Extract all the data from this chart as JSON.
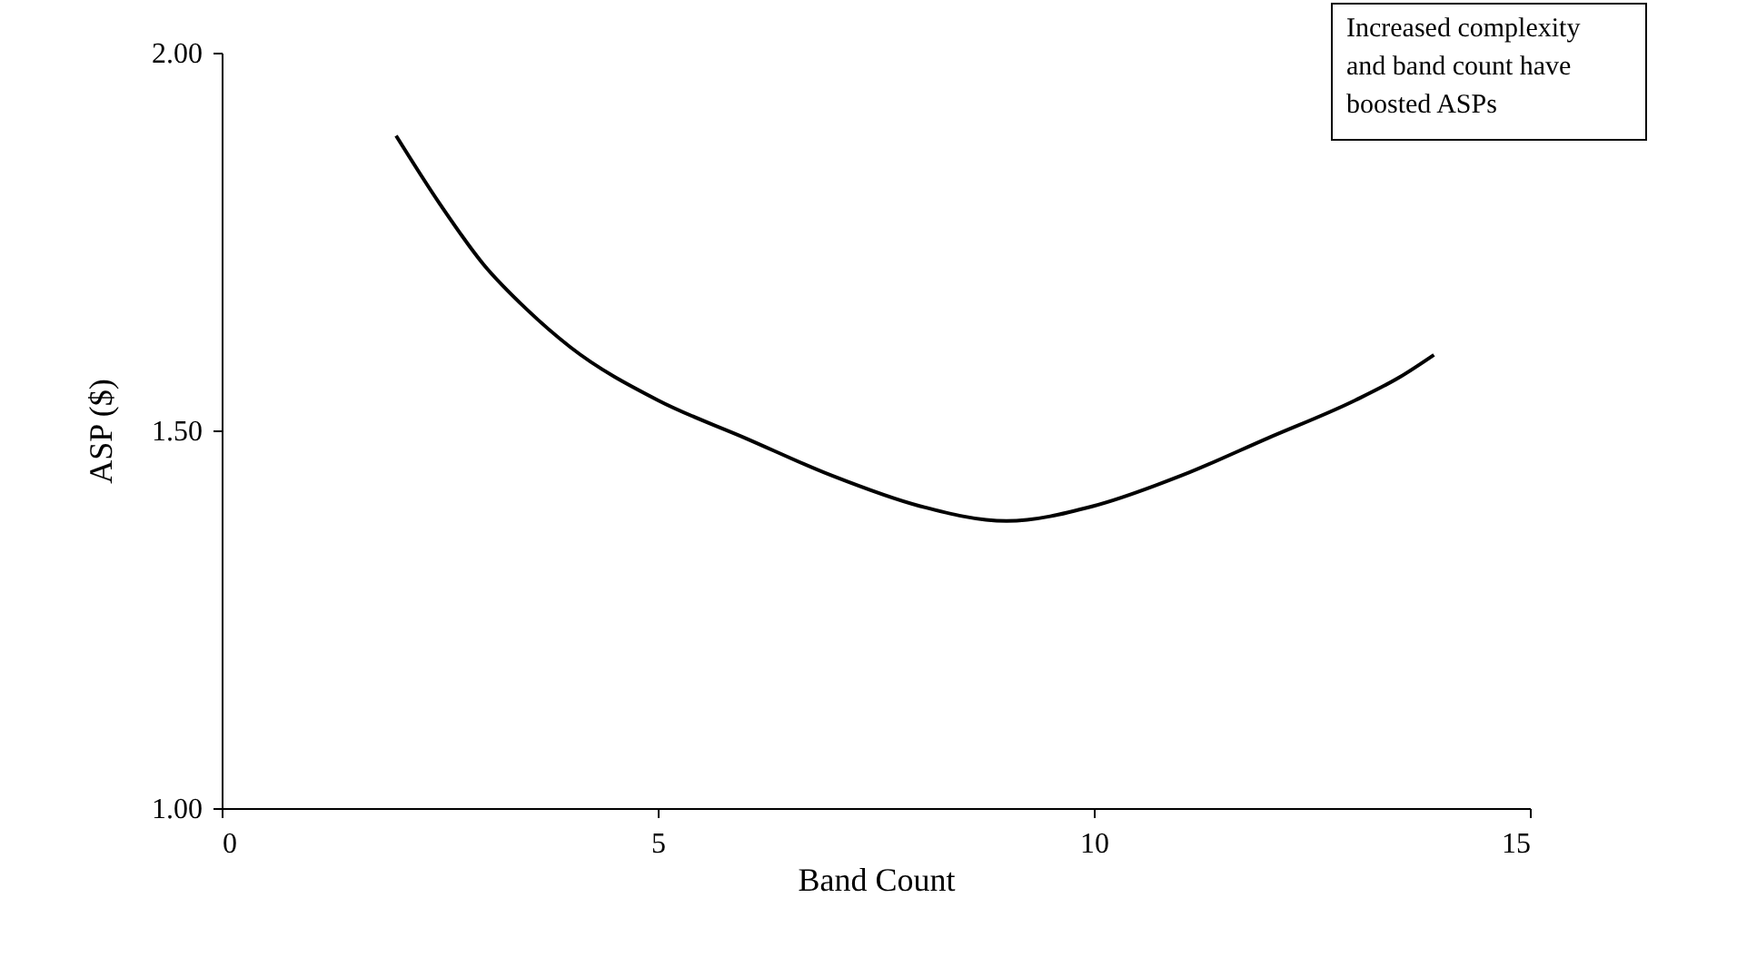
{
  "chart_data": {
    "type": "line",
    "xlabel": "Band Count",
    "ylabel": "ASP ($)",
    "x": [
      2,
      2.5,
      3,
      3.5,
      4,
      5,
      6,
      7,
      8,
      9,
      10,
      11,
      12,
      13,
      13.5,
      13.9
    ],
    "series": [
      {
        "color": "#000000",
        "values": [
          1.89,
          1.8,
          1.72,
          1.66,
          1.61,
          1.54,
          1.49,
          1.44,
          1.4,
          1.38,
          1.4,
          1.44,
          1.49,
          1.54,
          1.57,
          1.6
        ]
      }
    ],
    "xlim": [
      0,
      15
    ],
    "xticks": [
      0,
      5,
      10,
      15
    ],
    "ylim": [
      1,
      2
    ],
    "yticks": [
      {
        "value": 1,
        "label": "1.00"
      },
      {
        "value": 1.5,
        "label": "1.50"
      },
      {
        "value": 2,
        "label": "2.00"
      }
    ],
    "grid": false,
    "marker": "none",
    "line_style": "solid",
    "annotations": [
      "Increased complexity and band count have boosted ASPs"
    ]
  }
}
